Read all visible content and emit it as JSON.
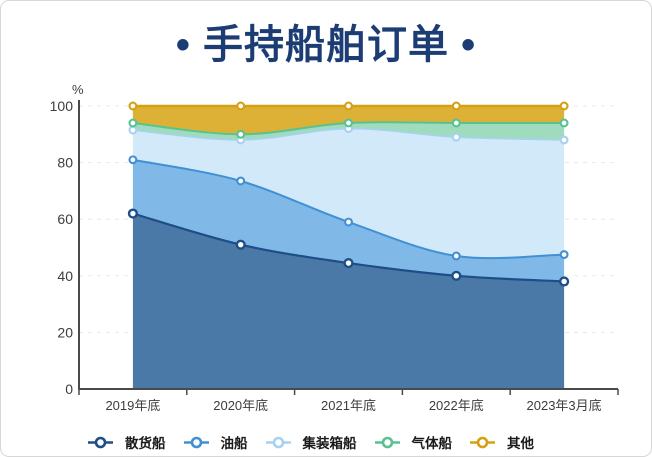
{
  "title": "• 手持船舶订单 •",
  "y_axis_unit": "%",
  "chart_data": {
    "type": "area",
    "stacked": true,
    "normalized_to": 100,
    "title": "手持船舶订单",
    "categories": [
      "2019年底",
      "2020年底",
      "2021年底",
      "2022年底",
      "2023年3月底"
    ],
    "series": [
      {
        "name": "散货船",
        "values": [
          62,
          51,
          44.5,
          40,
          38
        ],
        "line_color": "#1d4e87",
        "fill_color": "#4a79a8"
      },
      {
        "name": "油船",
        "values": [
          19,
          22.5,
          14.5,
          7,
          9.5
        ],
        "line_color": "#4190d5",
        "fill_color": "#80b8e7"
      },
      {
        "name": "集装箱船",
        "values": [
          10.5,
          14.5,
          33,
          42,
          40.5
        ],
        "line_color": "#a6d2f0",
        "fill_color": "#d2e9f9"
      },
      {
        "name": "气体船",
        "values": [
          2.5,
          2,
          2,
          5,
          6
        ],
        "line_color": "#58c292",
        "fill_color": "#9edcbd"
      },
      {
        "name": "其他",
        "values": [
          6,
          10,
          6,
          6,
          6
        ],
        "line_color": "#d5a113",
        "fill_color": "#dcb136"
      }
    ],
    "y_ticks": [
      0,
      20,
      40,
      60,
      80,
      100
    ],
    "ylim": [
      0,
      100
    ],
    "grid": "dashed-horizontal",
    "legend_position": "bottom"
  },
  "colors": {
    "title": "#1c3c74",
    "axis": "#4a4a4a",
    "grid": "#e8e8e8",
    "tick_label": "#3d3d3d",
    "border": "#d7d7d7"
  }
}
